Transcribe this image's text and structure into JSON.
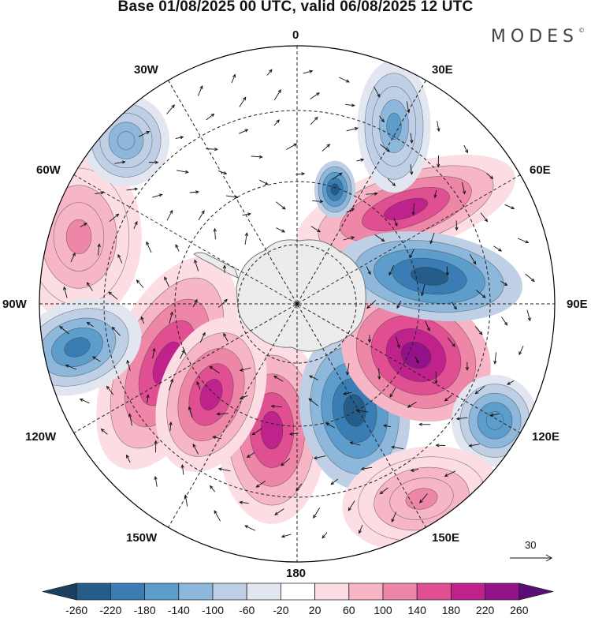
{
  "title": "Base 01/08/2025 00 UTC, valid 06/08/2025 12 UTC",
  "brand": {
    "name": "MODES",
    "mark": "©"
  },
  "longitude_labels": {
    "lon_0": "0",
    "lon_30e": "30E",
    "lon_60e": "60E",
    "lon_90e": "90E",
    "lon_120e": "120E",
    "lon_150e": "150E",
    "lon_180": "180",
    "lon_150w": "150W",
    "lon_120w": "120W",
    "lon_90w": "90W",
    "lon_60w": "60W",
    "lon_30w": "30W"
  },
  "reference_vector": {
    "label": "30"
  },
  "colorbar": {
    "labels": [
      "-260",
      "-220",
      "-180",
      "-140",
      "-100",
      "-60",
      "-20",
      "20",
      "60",
      "100",
      "140",
      "180",
      "220",
      "260"
    ],
    "colors": [
      "#1b3f5f",
      "#245c8a",
      "#3a7db5",
      "#5d9dcc",
      "#8db7db",
      "#bfd0e6",
      "#e2e6f1",
      "#ffffff",
      "#fbdde3",
      "#f6b6c6",
      "#ee86a8",
      "#df4f92",
      "#c0228c",
      "#93128a",
      "#5a0d77"
    ]
  },
  "map_colors": {
    "land": "#ececec",
    "coast": "#777777",
    "grid": "#222222"
  },
  "anomaly_cells": [
    {
      "name": "anomaly-high-east-atlantic",
      "value": 180
    },
    {
      "name": "anomaly-low-southwest-pacific",
      "value": -260
    },
    {
      "name": "anomaly-high-south-pacific",
      "value": 200
    },
    {
      "name": "anomaly-low-ross-sea",
      "value": -260
    },
    {
      "name": "anomaly-high-indian-ocean",
      "value": 240
    },
    {
      "name": "anomaly-low-indian-ocean",
      "value": -260
    },
    {
      "name": "anomaly-high-southern-indian-ocean",
      "value": 200
    },
    {
      "name": "anomaly-low-south-atlantic",
      "value": -160
    },
    {
      "name": "anomaly-low-tasman",
      "value": -180
    },
    {
      "name": "anomaly-high-south-of-australia",
      "value": 100
    },
    {
      "name": "anomaly-high-south-america",
      "value": 120
    },
    {
      "name": "anomaly-low-southeast-pacific",
      "value": -200
    },
    {
      "name": "anomaly-low-drake-passage",
      "value": -140
    },
    {
      "name": "anomaly-high-amundsen-sea",
      "value": 180
    }
  ]
}
